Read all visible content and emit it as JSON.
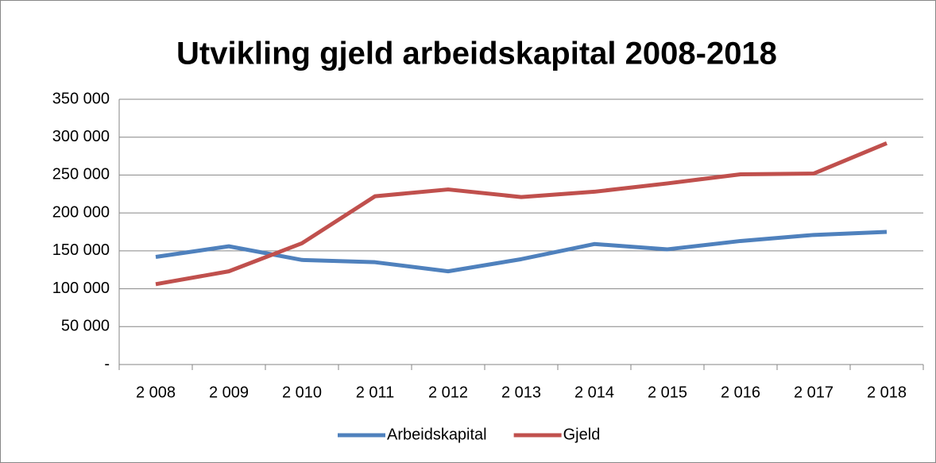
{
  "chart_data": {
    "type": "line",
    "title": "Utvikling gjeld arbeidskapital 2008-2018",
    "categories": [
      "2 008",
      "2 009",
      "2 010",
      "2 011",
      "2 012",
      "2 013",
      "2 014",
      "2 015",
      "2 016",
      "2 017",
      "2 018"
    ],
    "series": [
      {
        "name": "Arbeidskapital",
        "color": "#4f81bd",
        "values": [
          142000,
          156000,
          138000,
          135000,
          123000,
          139000,
          159000,
          152000,
          163000,
          171000,
          175000
        ]
      },
      {
        "name": "Gjeld",
        "color": "#c0504d",
        "values": [
          106000,
          123000,
          160000,
          222000,
          231000,
          221000,
          228000,
          239000,
          251000,
          252000,
          292000
        ]
      }
    ],
    "ylim": [
      0,
      350000
    ],
    "yticks": [
      {
        "value": 0,
        "label": "-"
      },
      {
        "value": 50000,
        "label": "50 000"
      },
      {
        "value": 100000,
        "label": "100 000"
      },
      {
        "value": 150000,
        "label": "150 000"
      },
      {
        "value": 200000,
        "label": "200 000"
      },
      {
        "value": 250000,
        "label": "250 000"
      },
      {
        "value": 300000,
        "label": "300 000"
      },
      {
        "value": 350000,
        "label": "350 000"
      }
    ],
    "grid": true,
    "legend": "bottom"
  }
}
